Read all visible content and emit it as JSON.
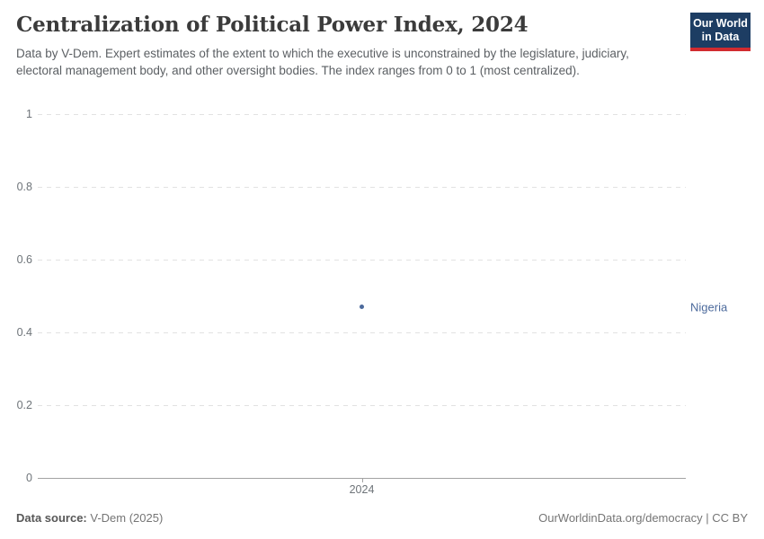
{
  "header": {
    "title": "Centralization of Political Power Index, 2024",
    "subtitle": "Data by V-Dem. Expert estimates of the extent to which the executive is unconstrained by the legislature, judiciary, electoral management body, and other oversight bodies. The index ranges from 0 to 1 (most centralized)."
  },
  "logo": {
    "line1": "Our World",
    "line2": "in Data",
    "bg_color": "#1d3d63",
    "accent_color": "#d12b2f"
  },
  "chart_data": {
    "type": "scatter",
    "title": "Centralization of Political Power Index, 2024",
    "series": [
      {
        "name": "Nigeria",
        "x": [
          2024
        ],
        "y": [
          0.47
        ],
        "color": "#4c6a9c"
      }
    ],
    "xticks": [
      "2024"
    ],
    "yticks": [
      0,
      0.2,
      0.4,
      0.6,
      0.8,
      1
    ],
    "ytick_labels": [
      "0",
      "0.2",
      "0.4",
      "0.6",
      "0.8",
      "1"
    ],
    "ylim": [
      0,
      1
    ],
    "xlabel": "",
    "ylabel": "",
    "grid": "horizontal dashed, solid baseline at 0",
    "legend": "entity label at right of plot"
  },
  "colors": {
    "grid": "#e2e2e2",
    "axis": "#a3a3a3",
    "tick_text": "#6e7479",
    "point": "#4c6a9c"
  },
  "footer": {
    "source_label": "Data source:",
    "source_value": "V-Dem (2025)",
    "right_text": "OurWorldinData.org/democracy | CC BY"
  }
}
